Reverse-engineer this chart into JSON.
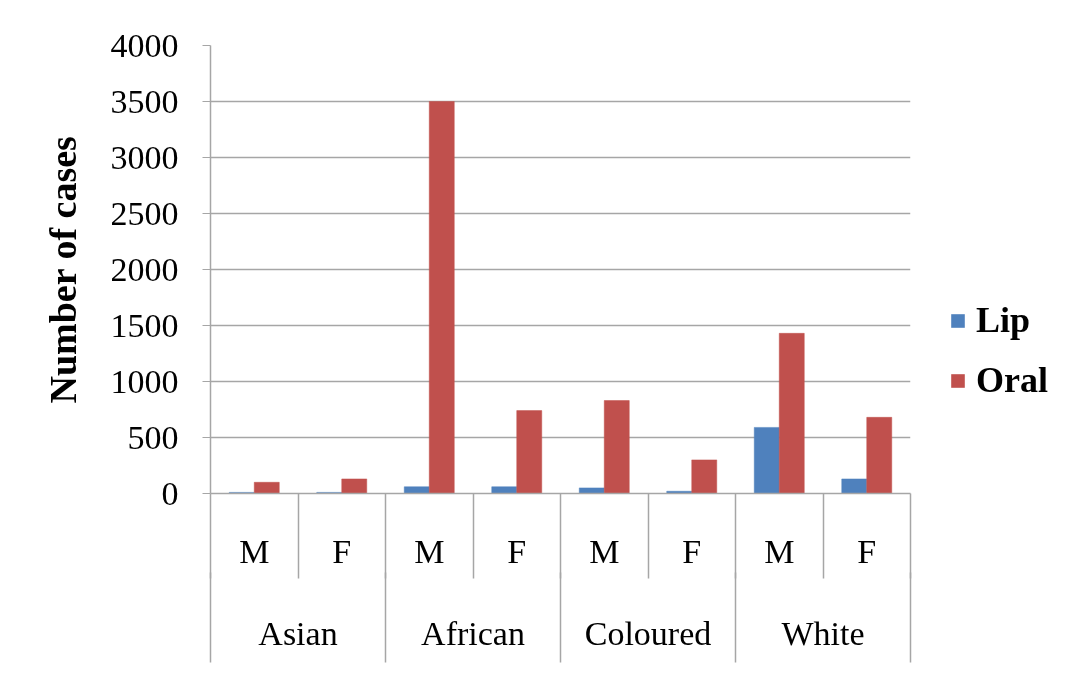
{
  "chart_data": {
    "type": "bar",
    "categories": [
      "M",
      "F",
      "M",
      "F",
      "M",
      "F",
      "M",
      "F"
    ],
    "annotations": [
      "Asian",
      "African",
      "Coloured",
      "White"
    ],
    "ylabel": "Number of cases",
    "series": [
      {
        "name": "Lip",
        "color": "#4f81bd",
        "values": [
          10,
          10,
          60,
          60,
          50,
          20,
          590,
          130
        ]
      },
      {
        "name": "Oral",
        "color": "#c0504d",
        "values": [
          100,
          130,
          3500,
          740,
          830,
          300,
          1430,
          680
        ]
      }
    ],
    "ylim": [
      0,
      4000
    ],
    "yticks": [
      0,
      500,
      1000,
      1500,
      2000,
      2500,
      3000,
      3500,
      4000
    ],
    "grid": "y",
    "legend": "right"
  }
}
